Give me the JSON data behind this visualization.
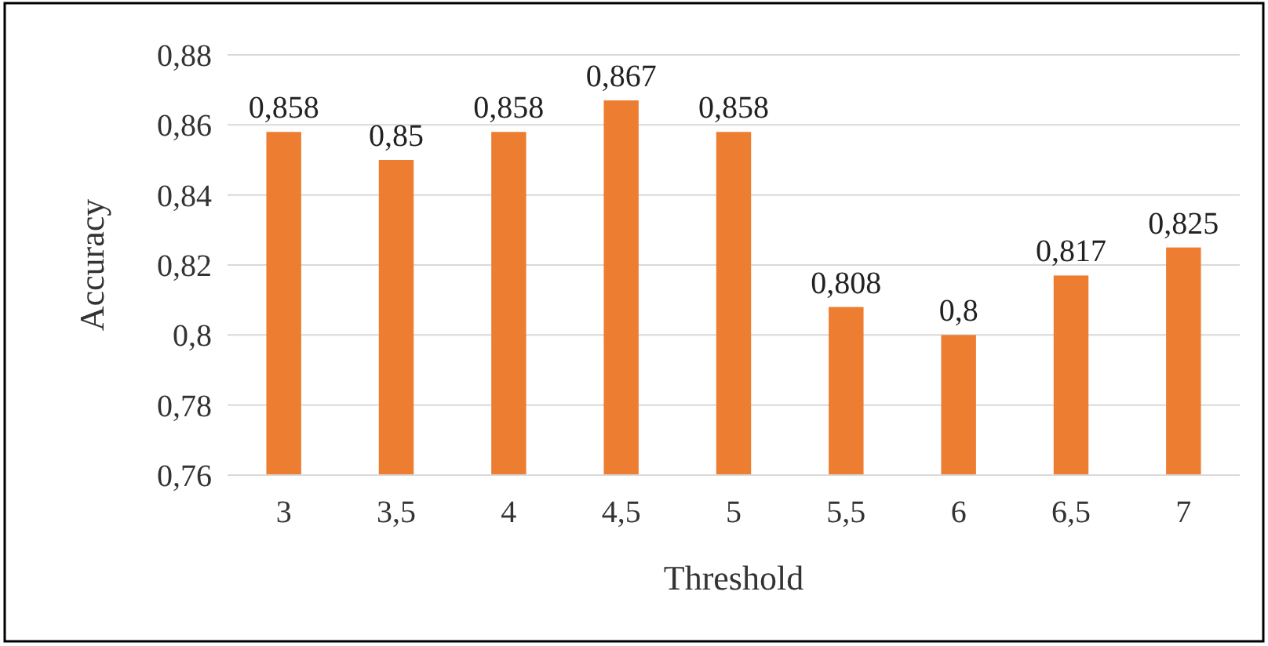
{
  "chart_data": {
    "type": "bar",
    "xlabel": "Threshold",
    "ylabel": "Accuracy",
    "categories": [
      "3",
      "3,5",
      "4",
      "4,5",
      "5",
      "5,5",
      "6",
      "6,5",
      "7"
    ],
    "values": [
      0.858,
      0.85,
      0.858,
      0.867,
      0.858,
      0.808,
      0.8,
      0.817,
      0.825
    ],
    "value_labels": [
      "0,858",
      "0,85",
      "0,858",
      "0,867",
      "0,858",
      "0,808",
      "0,8",
      "0,817",
      "0,825"
    ],
    "color": "#ed7d31",
    "ylim": [
      0.76,
      0.88
    ],
    "yticks": [
      {
        "value": 0.76,
        "label": "0,76"
      },
      {
        "value": 0.78,
        "label": "0,78"
      },
      {
        "value": 0.8,
        "label": "0,8"
      },
      {
        "value": 0.82,
        "label": "0,82"
      },
      {
        "value": 0.84,
        "label": "0,84"
      },
      {
        "value": 0.86,
        "label": "0,86"
      },
      {
        "value": 0.88,
        "label": "0,88"
      }
    ],
    "grid": "y"
  }
}
